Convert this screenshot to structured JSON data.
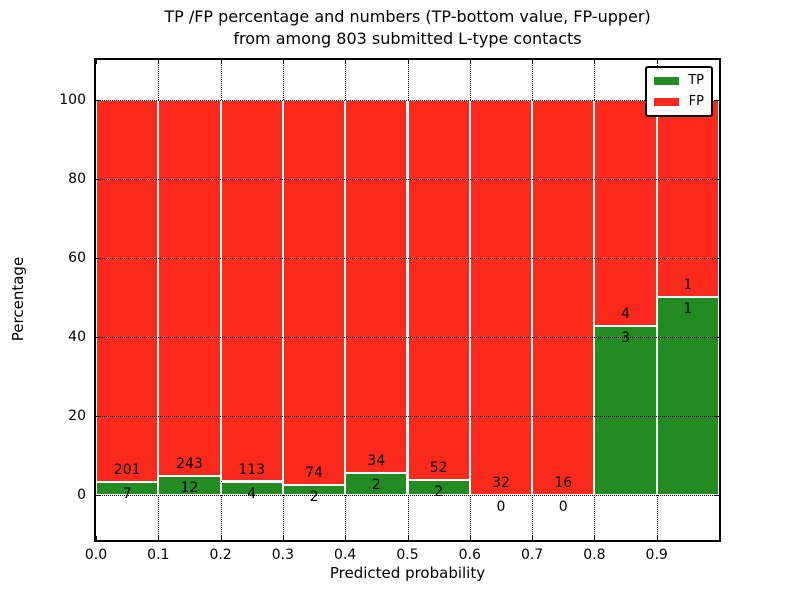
{
  "title": {
    "line1": "TP /FP percentage and numbers (TP-bottom value, FP-upper)",
    "line2": "from among 803 submitted L-type contacts"
  },
  "axes": {
    "ylabel": "Percentage",
    "xlabel": "Predicted probability",
    "ytick_labels": [
      "0",
      "20",
      "40",
      "60",
      "80",
      "100"
    ],
    "xtick_labels": [
      "0.0",
      "0.1",
      "0.2",
      "0.3",
      "0.4",
      "0.5",
      "0.6",
      "0.7",
      "0.8",
      "0.9"
    ]
  },
  "legend": {
    "position": "upper right",
    "items": [
      {
        "label": "TP",
        "color": "#228b22"
      },
      {
        "label": "FP",
        "color": "#fa291c"
      }
    ]
  },
  "chart_data": {
    "type": "bar",
    "stacked": true,
    "title": "TP /FP percentage and numbers (TP-bottom value, FP-upper)\nfrom among 803 submitted L-type contacts",
    "xlabel": "Predicted probability",
    "ylabel": "Percentage",
    "total_submitted": 803,
    "bin_width": 0.1,
    "bin_edges": [
      0.0,
      0.1,
      0.2,
      0.3,
      0.4,
      0.5,
      0.6,
      0.7,
      0.8,
      0.9,
      1.0
    ],
    "categories": [
      "0.0-0.1",
      "0.1-0.2",
      "0.2-0.3",
      "0.3-0.4",
      "0.4-0.5",
      "0.5-0.6",
      "0.6-0.7",
      "0.7-0.8",
      "0.8-0.9",
      "0.9-1.0"
    ],
    "series": [
      {
        "name": "TP",
        "color": "#228b22",
        "counts": [
          7,
          12,
          4,
          2,
          2,
          2,
          0,
          0,
          3,
          1
        ],
        "percent": [
          3.4,
          4.7,
          3.4,
          2.6,
          5.6,
          3.7,
          0.0,
          0.0,
          42.9,
          50.0
        ]
      },
      {
        "name": "FP",
        "color": "#fa291c",
        "counts": [
          201,
          243,
          113,
          74,
          34,
          52,
          32,
          16,
          4,
          1
        ],
        "percent": [
          96.6,
          95.3,
          96.6,
          97.4,
          94.4,
          96.3,
          100.0,
          100.0,
          57.1,
          50.0
        ]
      }
    ],
    "yticks": [
      0,
      20,
      40,
      60,
      80,
      100
    ],
    "xticks": [
      0.0,
      0.1,
      0.2,
      0.3,
      0.4,
      0.5,
      0.6,
      0.7,
      0.8,
      0.9
    ],
    "xlim": [
      0.0,
      1.0
    ],
    "ylim": [
      -11.4,
      110.1
    ],
    "grid": true,
    "grid_style": "dotted",
    "annotation_note": "FP count printed above TP/FP boundary, TP count printed below boundary",
    "legend_position": "upper right"
  }
}
